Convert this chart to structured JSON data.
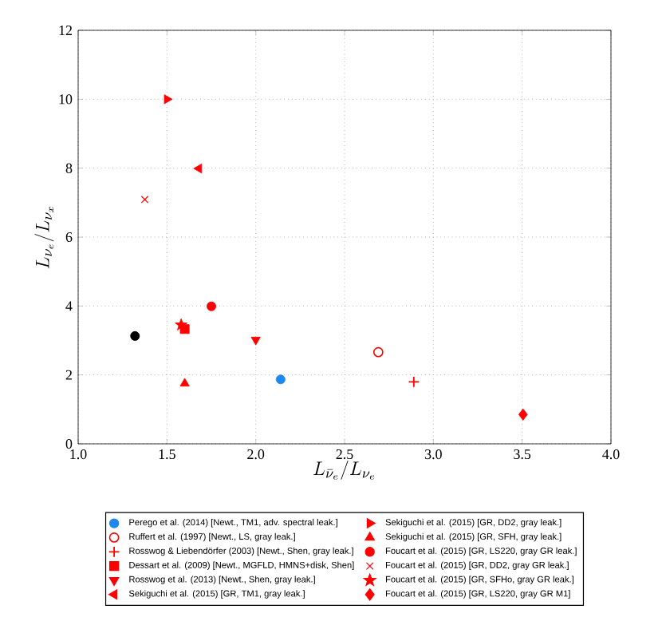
{
  "chart_data": {
    "type": "scatter",
    "xlabel": "L_{\\bar{\\nu}_e}/L_{\\nu_e}",
    "ylabel": "L_{\\nu_e}/L_{\\nu_x}",
    "xlim": [
      1.0,
      4.0
    ],
    "xticks": [
      {
        "value": 1,
        "label": "1.0"
      },
      1.5,
      {
        "value": 2,
        "label": "2.0"
      },
      2.5,
      {
        "value": 3,
        "label": "3.0"
      },
      3.5,
      {
        "value": 4,
        "label": "4.0"
      }
    ],
    "ylim": [
      0,
      12
    ],
    "yticks": [
      0,
      2,
      4,
      6,
      8,
      10,
      12
    ],
    "grid": true,
    "legend": "bottom",
    "series": [
      {
        "name": "Perego et al. (2014) [Newt., TM1, adv. spectral leak.]",
        "color": "#1e88ee",
        "marker": "circle",
        "x": [
          2.14
        ],
        "values": [
          1.87
        ]
      },
      {
        "name": "Ruffert et al. (1997) [Newt., LS, gray leak.]",
        "color": "#ff0000",
        "marker": "circle-open",
        "x": [
          2.69
        ],
        "values": [
          2.66
        ]
      },
      {
        "name": "Rosswog & Liebendörfer (2003) [Newt., Shen, gray leak.]",
        "color": "#ff0000",
        "marker": "plus",
        "x": [
          2.89
        ],
        "values": [
          1.8
        ]
      },
      {
        "name": "Dessart et al. (2009) [Newt., MGFLD, HMNS+disk, Shen]",
        "color": "#ff0000",
        "marker": "square",
        "x": [
          1.6
        ],
        "values": [
          3.33
        ]
      },
      {
        "name": "Rosswog et al. (2013) [Newt., Shen, gray leak.]",
        "color": "#ff0000",
        "marker": "triangle-down",
        "x": [
          2.0
        ],
        "values": [
          3.02
        ]
      },
      {
        "name": "Sekiguchi et al. (2015) [GR, TM1, gray leak.]",
        "color": "#ff0000",
        "marker": "triangle-left",
        "x": [
          1.68
        ],
        "values": [
          7.99
        ]
      },
      {
        "name": "Sekiguchi et al. (2015) [GR, DD2, gray leak.]",
        "color": "#ff0000",
        "marker": "triangle-right",
        "x": [
          1.5
        ],
        "values": [
          10.0
        ]
      },
      {
        "name": "Sekiguchi et al. (2015) [GR, SFH, gray leak.]",
        "color": "#ff0000",
        "marker": "triangle",
        "x": [
          1.6
        ],
        "values": [
          1.75
        ]
      },
      {
        "name": "Foucart et al. (2015) [GR, LS220, gray GR leak.]",
        "color": "#ff0000",
        "marker": "circle",
        "x": [
          1.75
        ],
        "values": [
          3.99
        ]
      },
      {
        "name": "Foucart et al. (2015) [GR, DD2, gray GR leak.]",
        "color": "#ff0000",
        "marker": "cross",
        "x": [
          1.375
        ],
        "values": [
          7.09
        ]
      },
      {
        "name": "Foucart et al. (2015) [GR, SFHo, gray GR leak.]",
        "color": "#ff0000",
        "marker": "star",
        "x": [
          1.58
        ],
        "values": [
          3.45
        ]
      },
      {
        "name": "Foucart et al. (2015) [GR, LS220, gray GR M1]",
        "color": "#ff0000",
        "marker": "diamond",
        "x": [
          3.505
        ],
        "values": [
          0.85
        ]
      },
      {
        "color": "#000000",
        "marker": "circle",
        "x": [
          1.32
        ],
        "values": [
          3.13
        ]
      }
    ]
  }
}
